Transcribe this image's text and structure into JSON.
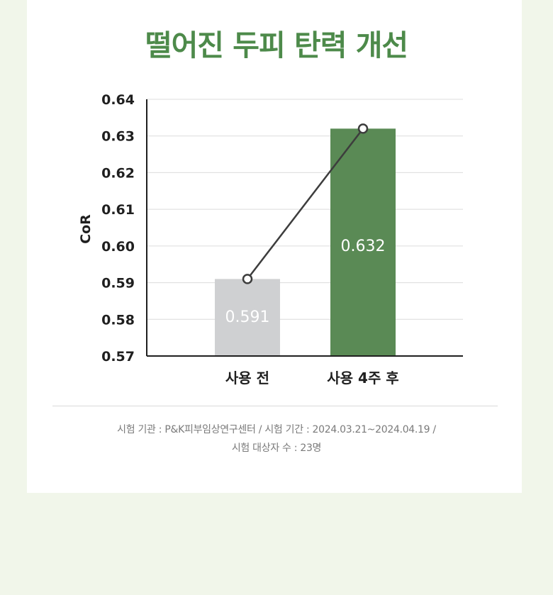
{
  "title": "떨어진 두피 탄력 개선",
  "chart_data": {
    "type": "bar",
    "categories": [
      "사용 전",
      "사용 4주 후"
    ],
    "values": [
      0.591,
      0.632
    ],
    "value_labels": [
      "0.591",
      "0.632"
    ],
    "ylabel": "CoR",
    "ylim": [
      0.57,
      0.64
    ],
    "yticks": [
      "0.64",
      "0.63",
      "0.62",
      "0.61",
      "0.60",
      "0.59",
      "0.58",
      "0.57"
    ],
    "grid": true,
    "bar_colors": [
      "#cfd0d2",
      "#5a8a55"
    ],
    "trend_line": true
  },
  "footnote": {
    "line1": "시험 기관 : P&K피부임상연구센터 / 시험 기간 : 2024.03.21~2024.04.19 /",
    "line2": "시험 대상자 수 : 23명"
  },
  "colors": {
    "page_background": "#f1f6ea",
    "card_background": "#ffffff",
    "title": "#4d8a4a"
  }
}
